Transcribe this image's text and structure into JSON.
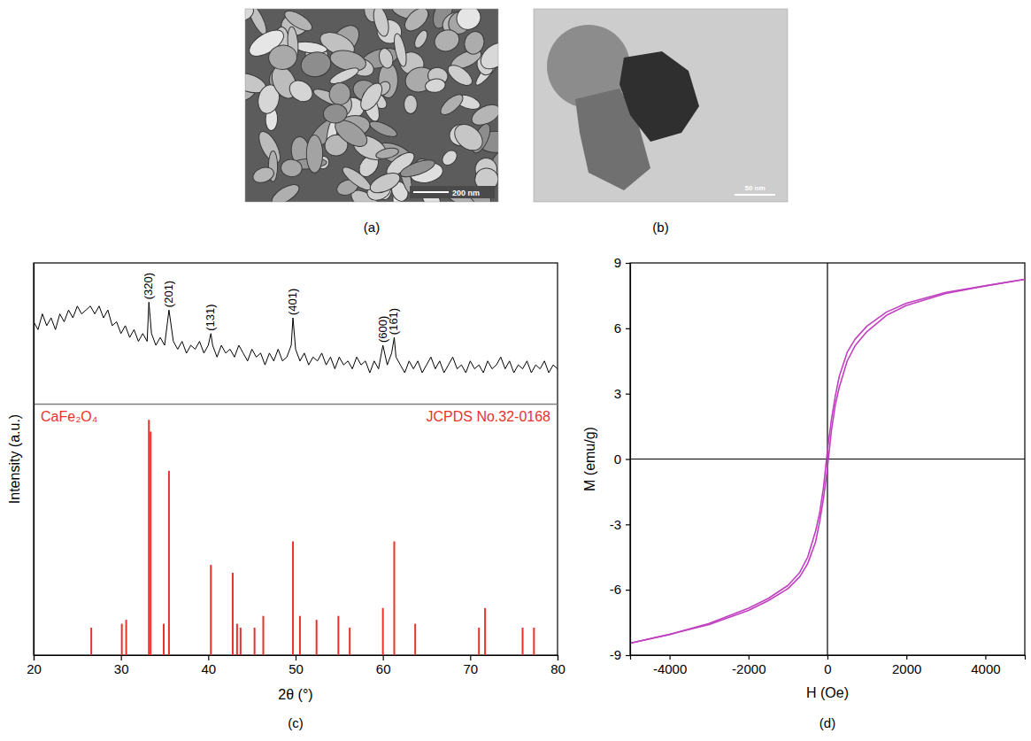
{
  "images": [
    {
      "panel_label": "(a)",
      "scale_bar": "200 nm"
    },
    {
      "panel_label": "(b)",
      "scale_bar": "50 nm"
    }
  ],
  "chart_data": [
    {
      "type": "line",
      "panel_label": "(c)",
      "x_label": "2θ (°)",
      "y_label": "Intensity (a.u.)",
      "xlim": [
        20,
        80
      ],
      "xticks": [
        20,
        30,
        40,
        50,
        60,
        70,
        80
      ],
      "ylim": [
        0,
        100
      ],
      "tick_labels": "x",
      "reference_label": "JCPDS No.32-0168",
      "series": [
        {
          "type": "line",
          "color": "#000000",
          "x": [
            20,
            20.5,
            21,
            21.5,
            22,
            22.5,
            23,
            23.5,
            24,
            24.5,
            25,
            25.5,
            26,
            26.5,
            27,
            27.5,
            28,
            28.5,
            29,
            29.5,
            30,
            30.5,
            31,
            31.5,
            32,
            32.5,
            33,
            33.2,
            33.5,
            34,
            34.5,
            35,
            35.5,
            36,
            36.5,
            37,
            37.5,
            38,
            38.5,
            39,
            39.5,
            40,
            40.3,
            40.5,
            41,
            41.5,
            42,
            42.5,
            43,
            43.5,
            44,
            44.5,
            45,
            45.5,
            46,
            46.5,
            47,
            47.5,
            48,
            48.5,
            49,
            49.5,
            49.7,
            50,
            50.5,
            51,
            51.5,
            52,
            52.5,
            53,
            53.5,
            54,
            54.5,
            55,
            55.5,
            56,
            56.5,
            57,
            57.5,
            58,
            58.5,
            59,
            59.5,
            60,
            60.5,
            61,
            61.3,
            61.5,
            62,
            62.5,
            63,
            63.5,
            64,
            64.5,
            65,
            65.5,
            66,
            66.5,
            67,
            67.5,
            68,
            68.5,
            69,
            69.5,
            70,
            70.5,
            71,
            71.5,
            72,
            72.5,
            73,
            73.5,
            74,
            74.5,
            75,
            75.5,
            76,
            76.5,
            77,
            77.5,
            78,
            78.5,
            79,
            79.5,
            80
          ],
          "values": [
            85,
            83,
            87,
            84,
            86,
            83,
            87,
            85,
            88,
            86,
            89,
            87,
            88,
            89,
            87,
            89,
            86,
            88,
            84,
            85,
            82,
            84,
            81,
            83,
            80,
            82,
            80,
            90,
            82,
            79,
            81,
            79,
            88,
            80,
            78,
            80,
            77,
            79,
            78,
            80,
            77,
            79,
            82,
            79,
            76,
            79,
            77,
            78,
            76,
            79,
            77,
            75,
            78,
            76,
            77,
            74,
            77,
            75,
            78,
            75,
            76,
            79,
            86,
            78,
            75,
            77,
            74,
            76,
            75,
            77,
            74,
            76,
            73,
            76,
            74,
            75,
            73,
            76,
            74,
            75,
            72,
            75,
            73,
            79,
            74,
            77,
            81,
            76,
            74,
            72,
            75,
            73,
            75,
            72,
            74,
            76,
            73,
            75,
            72,
            74,
            76,
            73,
            74,
            72,
            75,
            73,
            74,
            72,
            75,
            73,
            74,
            76,
            73,
            75,
            72,
            74,
            73,
            75,
            72,
            74,
            73,
            75,
            72,
            74,
            73
          ]
        },
        {
          "type": "bar",
          "name": "CaFe₂O₄",
          "color": "#e8332a",
          "x": [
            26.6,
            30.1,
            30.6,
            33.2,
            33.4,
            34.9,
            35.5,
            40.3,
            42.8,
            43.3,
            43.7,
            45.3,
            46.3,
            49.7,
            50.5,
            52.4,
            54.9,
            56.2,
            60.0,
            61.3,
            63.7,
            71.0,
            71.7,
            76.0,
            77.3
          ],
          "values": [
            7,
            8,
            9,
            60,
            57,
            8,
            47,
            23,
            21,
            8,
            7,
            7,
            10,
            29,
            10,
            9,
            10,
            7,
            12,
            29,
            8,
            7,
            12,
            7,
            7
          ]
        }
      ],
      "annotations": [
        {
          "text": "(320)",
          "x": 33.2,
          "y": 90
        },
        {
          "text": "(201)",
          "x": 35.5,
          "y": 88
        },
        {
          "text": "(131)",
          "x": 40.3,
          "y": 82
        },
        {
          "text": "(401)",
          "x": 49.7,
          "y": 86
        },
        {
          "text": "(600)",
          "x": 60.0,
          "y": 79
        },
        {
          "text": "(161)",
          "x": 61.3,
          "y": 81
        }
      ]
    },
    {
      "type": "line",
      "panel_label": "(d)",
      "x_label": "H (Oe)",
      "y_label": "M (emu/g)",
      "xlim": [
        -5000,
        5000
      ],
      "xticks": [
        -4000,
        -2000,
        0,
        2000,
        4000
      ],
      "ylim": [
        -9,
        9
      ],
      "yticks": [
        -9,
        -6,
        -3,
        0,
        3,
        6,
        9
      ],
      "series": [
        {
          "type": "line",
          "color": "#c040c0",
          "x": [
            -5000,
            -4000,
            -3000,
            -2000,
            -1500,
            -1000,
            -700,
            -500,
            -300,
            -200,
            -100,
            0,
            100,
            200,
            300,
            500,
            700,
            1000,
            1500,
            2000,
            3000,
            4000,
            5000
          ],
          "values": [
            -8.45,
            -8.05,
            -7.55,
            -6.85,
            -6.4,
            -5.8,
            -5.2,
            -4.5,
            -3.3,
            -2.5,
            -1.3,
            0.4,
            1.8,
            2.9,
            3.8,
            4.9,
            5.5,
            6.1,
            6.75,
            7.15,
            7.65,
            7.95,
            8.25
          ]
        },
        {
          "type": "line",
          "color": "#c040c0",
          "x": [
            -5000,
            -4000,
            -3000,
            -2000,
            -1500,
            -1000,
            -700,
            -500,
            -300,
            -200,
            -100,
            0,
            100,
            200,
            300,
            500,
            700,
            1000,
            1500,
            2000,
            3000,
            4000,
            5000
          ],
          "values": [
            -8.45,
            -8.05,
            -7.6,
            -6.95,
            -6.5,
            -5.95,
            -5.4,
            -4.8,
            -3.8,
            -2.9,
            -1.8,
            -0.4,
            1.3,
            2.5,
            3.3,
            4.5,
            5.2,
            5.85,
            6.6,
            7.05,
            7.6,
            7.95,
            8.25
          ]
        }
      ]
    }
  ]
}
